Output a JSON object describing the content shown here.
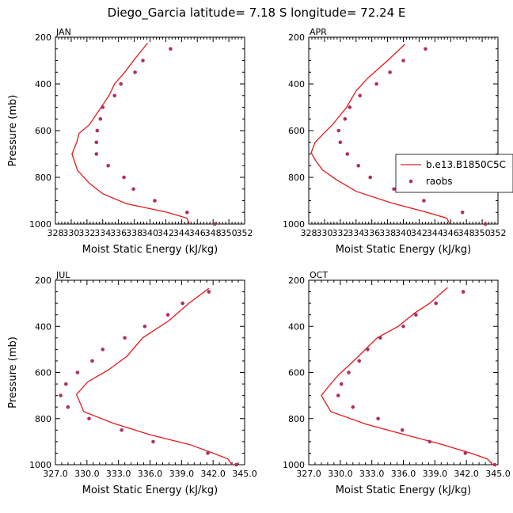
{
  "title": "Diego_Garcia   latitude= 7.18 S longitude= 72.24 E",
  "colors": {
    "model": "#e31a1c",
    "obs": "#b03060"
  },
  "chart_data": [
    {
      "type": "line",
      "panel": "JAN",
      "xlabel": "Moist Static Energy (kJ/kg)",
      "ylabel": "Pressure (mb)",
      "xlim": [
        328,
        352
      ],
      "ylim": [
        1000,
        200
      ],
      "xticks": [
        "328",
        "330",
        "332",
        "334",
        "336",
        "338",
        "340",
        "342",
        "344",
        "346",
        "348",
        "350",
        "352"
      ],
      "yticks": [
        "200",
        "400",
        "600",
        "800",
        "1000"
      ],
      "series": [
        {
          "name": "b.e13.B1850C5C",
          "kind": "line",
          "points": [
            [
              339.7,
              225
            ],
            [
              337.9,
              300
            ],
            [
              336.8,
              350
            ],
            [
              335.5,
              400
            ],
            [
              334.8,
              450
            ],
            [
              333.3,
              525
            ],
            [
              332.3,
              575
            ],
            [
              331.0,
              612
            ],
            [
              330.7,
              650
            ],
            [
              330.1,
              700
            ],
            [
              330.8,
              770
            ],
            [
              332.3,
              825
            ],
            [
              334.0,
              870
            ],
            [
              337.0,
              913
            ],
            [
              342.2,
              950
            ],
            [
              344.7,
              975
            ],
            [
              345.0,
              1000
            ]
          ]
        },
        {
          "name": "raobs",
          "kind": "scatter",
          "points": [
            [
              342.6,
              250
            ],
            [
              339.1,
              300
            ],
            [
              338.1,
              350
            ],
            [
              336.3,
              400
            ],
            [
              335.5,
              450
            ],
            [
              334.0,
              500
            ],
            [
              333.7,
              550
            ],
            [
              333.3,
              600
            ],
            [
              333.2,
              650
            ],
            [
              333.2,
              700
            ],
            [
              334.7,
              750
            ],
            [
              336.7,
              800
            ],
            [
              337.9,
              850
            ],
            [
              340.6,
              900
            ],
            [
              344.7,
              950
            ],
            [
              348.2,
              1000
            ]
          ]
        }
      ]
    },
    {
      "type": "line",
      "panel": "APR",
      "xlabel": "Moist Static Energy (kJ/kg)",
      "ylabel": "",
      "xlim": [
        328,
        352
      ],
      "ylim": [
        1000,
        200
      ],
      "xticks": [
        "328",
        "330",
        "332",
        "334",
        "336",
        "338",
        "340",
        "342",
        "344",
        "346",
        "348",
        "350",
        "352"
      ],
      "yticks": [
        "200",
        "400",
        "600",
        "800",
        "1000"
      ],
      "legend": {
        "position": "right",
        "entries": [
          "b.e13.B1850C5C",
          "raobs"
        ]
      },
      "series": [
        {
          "name": "b.e13.B1850C5C",
          "kind": "line",
          "points": [
            [
              340.2,
              230
            ],
            [
              338.0,
              300
            ],
            [
              335.5,
              375
            ],
            [
              334.0,
              430
            ],
            [
              332.8,
              500
            ],
            [
              331.0,
              575
            ],
            [
              329.8,
              615
            ],
            [
              328.8,
              650
            ],
            [
              328.3,
              695
            ],
            [
              328.9,
              730
            ],
            [
              329.8,
              770
            ],
            [
              331.5,
              810
            ],
            [
              334.0,
              860
            ],
            [
              338.5,
              910
            ],
            [
              343.0,
              950
            ],
            [
              345.5,
              975
            ],
            [
              345.9,
              1000
            ]
          ]
        },
        {
          "name": "raobs",
          "kind": "scatter",
          "points": [
            [
              342.8,
              250
            ],
            [
              340.0,
              300
            ],
            [
              338.3,
              350
            ],
            [
              336.6,
              400
            ],
            [
              334.5,
              450
            ],
            [
              333.2,
              500
            ],
            [
              332.6,
              550
            ],
            [
              331.8,
              600
            ],
            [
              332.0,
              650
            ],
            [
              332.9,
              700
            ],
            [
              334.3,
              750
            ],
            [
              335.8,
              800
            ],
            [
              338.8,
              850
            ],
            [
              342.6,
              900
            ],
            [
              347.5,
              950
            ],
            [
              350.4,
              1000
            ]
          ]
        }
      ]
    },
    {
      "type": "line",
      "panel": "JUL",
      "xlabel": "Moist Static Energy (kJ/kg)",
      "ylabel": "Pressure (mb)",
      "xlim": [
        327,
        345
      ],
      "ylim": [
        1000,
        200
      ],
      "xticks": [
        "327.0",
        "330.0",
        "333.0",
        "336.0",
        "339.0",
        "342.0",
        "345.0"
      ],
      "yticks": [
        "200",
        "400",
        "600",
        "800",
        "1000"
      ],
      "series": [
        {
          "name": "b.e13.B1850C5C",
          "kind": "line",
          "points": [
            [
              341.6,
              235
            ],
            [
              339.7,
              300
            ],
            [
              337.8,
              375
            ],
            [
              335.3,
              450
            ],
            [
              333.8,
              530
            ],
            [
              332.0,
              590
            ],
            [
              330.1,
              640
            ],
            [
              329.0,
              695
            ],
            [
              329.7,
              770
            ],
            [
              332.5,
              820
            ],
            [
              336.0,
              870
            ],
            [
              339.8,
              913
            ],
            [
              342.0,
              950
            ],
            [
              343.4,
              975
            ],
            [
              343.8,
              1000
            ]
          ]
        },
        {
          "name": "raobs",
          "kind": "scatter",
          "points": [
            [
              341.6,
              250
            ],
            [
              339.1,
              300
            ],
            [
              337.7,
              350
            ],
            [
              335.5,
              400
            ],
            [
              333.6,
              450
            ],
            [
              331.5,
              500
            ],
            [
              330.5,
              550
            ],
            [
              329.1,
              600
            ],
            [
              328.0,
              650
            ],
            [
              327.5,
              700
            ],
            [
              328.2,
              750
            ],
            [
              330.2,
              800
            ],
            [
              333.3,
              850
            ],
            [
              336.3,
              900
            ],
            [
              341.5,
              950
            ],
            [
              344.2,
              1000
            ]
          ]
        }
      ]
    },
    {
      "type": "line",
      "panel": "OCT",
      "xlabel": "Moist Static Energy (kJ/kg)",
      "ylabel": "",
      "xlim": [
        327,
        345
      ],
      "ylim": [
        1000,
        200
      ],
      "xticks": [
        "327.0",
        "330.0",
        "333.0",
        "336.0",
        "339.0",
        "342.0",
        "345.0"
      ],
      "yticks": [
        "200",
        "400",
        "600",
        "800",
        "1000"
      ],
      "series": [
        {
          "name": "b.e13.B1850C5C",
          "kind": "line",
          "points": [
            [
              340.2,
              232
            ],
            [
              338.5,
              300
            ],
            [
              337.0,
              345
            ],
            [
              335.5,
              400
            ],
            [
              333.5,
              450
            ],
            [
              331.5,
              540
            ],
            [
              329.8,
              612
            ],
            [
              328.9,
              660
            ],
            [
              328.2,
              700
            ],
            [
              329.1,
              770
            ],
            [
              332.5,
              825
            ],
            [
              336.0,
              868
            ],
            [
              339.5,
              910
            ],
            [
              342.4,
              950
            ],
            [
              344.0,
              975
            ],
            [
              344.5,
              1000
            ]
          ]
        },
        {
          "name": "raobs",
          "kind": "scatter",
          "points": [
            [
              341.7,
              250
            ],
            [
              339.1,
              300
            ],
            [
              337.2,
              350
            ],
            [
              336.0,
              400
            ],
            [
              333.8,
              450
            ],
            [
              332.6,
              500
            ],
            [
              331.8,
              550
            ],
            [
              330.8,
              600
            ],
            [
              330.1,
              650
            ],
            [
              329.8,
              700
            ],
            [
              331.2,
              750
            ],
            [
              333.6,
              800
            ],
            [
              335.9,
              850
            ],
            [
              338.5,
              900
            ],
            [
              341.9,
              950
            ],
            [
              344.7,
              1000
            ]
          ]
        }
      ]
    }
  ]
}
